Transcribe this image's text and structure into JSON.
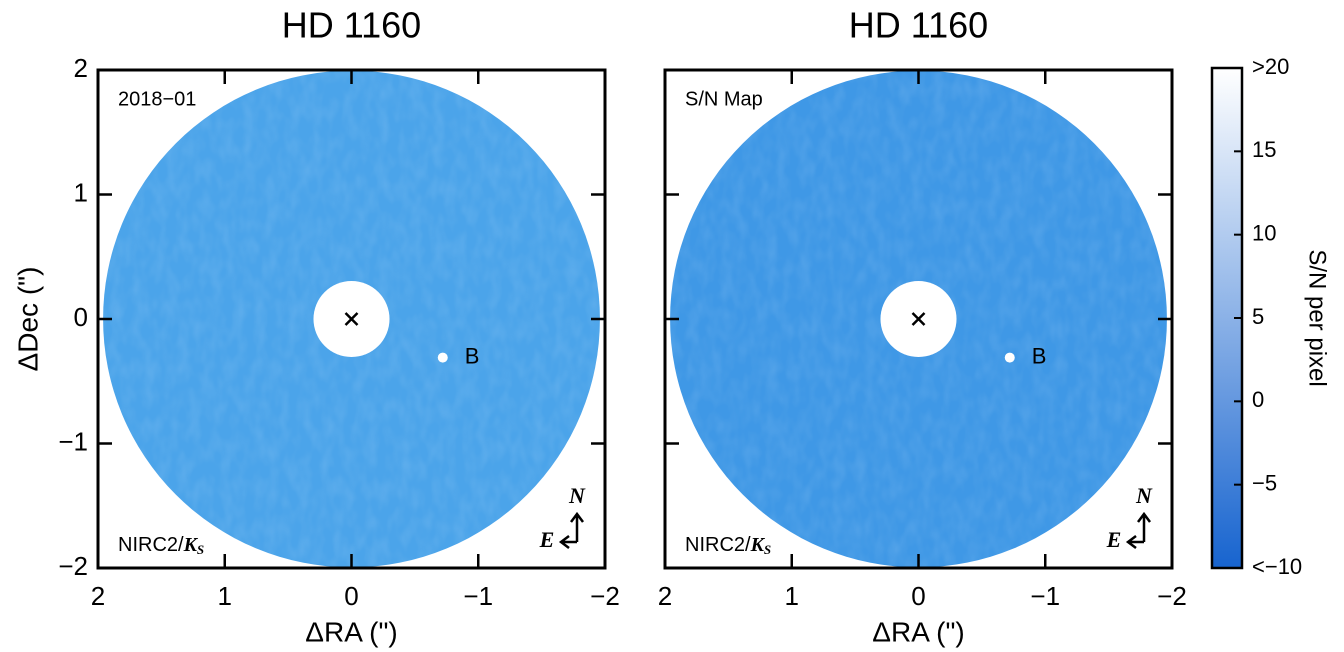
{
  "chart_data": [
    {
      "type": "image",
      "title": "HD 1160",
      "xlabel": "ΔRA (\")",
      "ylabel": "ΔDec (\")",
      "xlim": [
        2,
        -2
      ],
      "ylim": [
        -2,
        2
      ],
      "xticks": [
        2,
        1,
        0,
        {
          "value": -1,
          "label": "−1"
        },
        {
          "value": -2,
          "label": "−2"
        }
      ],
      "yticks": [
        {
          "value": -2,
          "label": "−2"
        },
        {
          "value": -1,
          "label": "−1"
        },
        0,
        1,
        2
      ],
      "label": "2018−01",
      "instrument": "NIRC2/",
      "band": "K",
      "band_sub": "S",
      "star": {
        "x": 0,
        "y": 0
      },
      "companion": {
        "label": "B",
        "x": -0.72,
        "y": -0.31
      },
      "mask_radius": 0.3,
      "field_radius": 1.96,
      "color": "#4ba4ea",
      "compass": {
        "north": "N",
        "east": "E"
      }
    },
    {
      "type": "image",
      "title": "HD 1160",
      "xlabel": "ΔRA (\")",
      "xlim": [
        2,
        -2
      ],
      "ylim": [
        -2,
        2
      ],
      "xticks": [
        2,
        1,
        0,
        {
          "value": -1,
          "label": "−1"
        },
        {
          "value": -2,
          "label": "−2"
        }
      ],
      "yticks": [
        -2,
        -1,
        0,
        1,
        2
      ],
      "label": "S/N Map",
      "instrument": "NIRC2/",
      "band": "K",
      "band_sub": "S",
      "star": {
        "x": 0,
        "y": 0
      },
      "companion": {
        "label": "B",
        "x": -0.72,
        "y": -0.31
      },
      "mask_radius": 0.3,
      "field_radius": 1.96,
      "color": "#3f98e6",
      "compass": {
        "north": "N",
        "east": "E"
      }
    },
    {
      "type": "colorbar",
      "label": "S/N per pixel",
      "ylim": [
        -10,
        20
      ],
      "yticks": [
        {
          "value": -10,
          "label": "<−10"
        },
        {
          "value": -5,
          "label": "−5"
        },
        0,
        5,
        10,
        15,
        {
          "value": 20,
          "label": ">20"
        }
      ],
      "colors": [
        "#1764cf",
        "#ffffff"
      ]
    }
  ]
}
